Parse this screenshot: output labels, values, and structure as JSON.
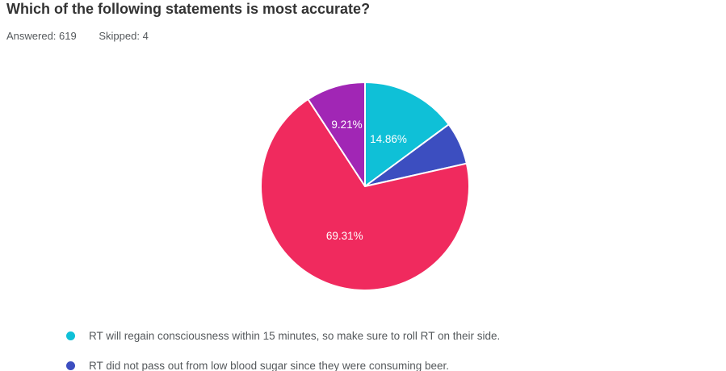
{
  "header": {
    "title": "Which of the following statements is most accurate?",
    "answered_label": "Answered:",
    "answered_value": "619",
    "skipped_label": "Skipped:",
    "skipped_value": "4"
  },
  "chart_data": {
    "type": "pie",
    "title": "Which of the following statements is most accurate?",
    "answered": 619,
    "skipped": 4,
    "unit": "%",
    "legend_position": "bottom",
    "label_color": "#ffffff",
    "slice_border_color": "#ffffff",
    "slices": [
      {
        "legend_label": "RT will regain consciousness within 15 minutes, so make sure to roll RT on their side.",
        "value": 14.86,
        "data_label": "14.86%",
        "color": "#0FC0D7",
        "legend_visible": true
      },
      {
        "legend_label": "RT did not pass out from low blood sugar since they were consuming beer.",
        "value": 6.62,
        "data_label": "",
        "color": "#3C4EC0",
        "legend_visible": true
      },
      {
        "legend_label": "",
        "value": 69.31,
        "data_label": "69.31%",
        "color": "#F02A5E",
        "legend_visible": false
      },
      {
        "legend_label": "",
        "value": 9.21,
        "data_label": "9.21%",
        "color": "#A126B5",
        "legend_visible": false
      }
    ]
  }
}
